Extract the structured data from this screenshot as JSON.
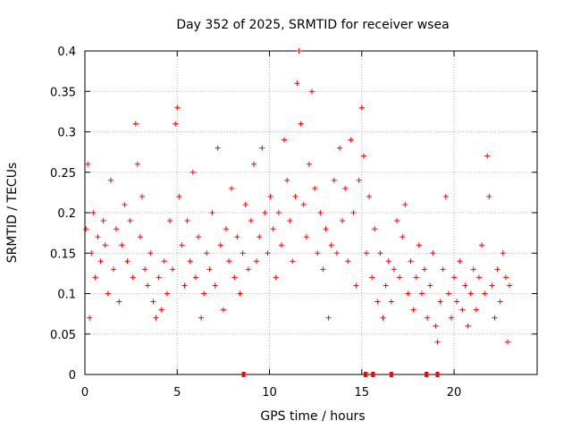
{
  "chart_data": {
    "type": "scatter",
    "title": "Day 352 of 2025, SRMTID for receiver wsea",
    "xlabel": "GPS time / hours",
    "ylabel": "SRMTID / TECUs",
    "xlim": [
      0,
      24.5
    ],
    "ylim": [
      0,
      0.4
    ],
    "x_ticks": [
      0,
      5,
      10,
      15,
      20
    ],
    "x_tick_labels": [
      "0",
      "5",
      "10",
      "15",
      "20"
    ],
    "y_ticks": [
      0,
      0.05,
      0.1,
      0.15,
      0.2,
      0.25,
      0.3,
      0.35,
      0.4
    ],
    "y_tick_labels": [
      "0",
      "0.05",
      "0.1",
      "0.15",
      "0.2",
      "0.25",
      "0.3",
      "0.35",
      "0.4"
    ],
    "grid": true,
    "marker": "+",
    "series_color": "#ff0000",
    "series": [
      {
        "name": "SRMTID",
        "points": [
          [
            0.05,
            0.18
          ],
          [
            0.15,
            0.26
          ],
          [
            0.25,
            0.07
          ],
          [
            0.35,
            0.15
          ],
          [
            0.45,
            0.2
          ],
          [
            0.55,
            0.12
          ],
          [
            0.7,
            0.17
          ],
          [
            0.85,
            0.14
          ],
          [
            1.0,
            0.19
          ],
          [
            1.1,
            0.16
          ],
          [
            1.25,
            0.1
          ],
          [
            1.4,
            0.24
          ],
          [
            1.55,
            0.13
          ],
          [
            1.7,
            0.18
          ],
          [
            1.85,
            0.09
          ],
          [
            2.0,
            0.16
          ],
          [
            2.15,
            0.21
          ],
          [
            2.3,
            0.14
          ],
          [
            2.45,
            0.19
          ],
          [
            2.6,
            0.12
          ],
          [
            2.75,
            0.31
          ],
          [
            2.85,
            0.26
          ],
          [
            3.0,
            0.17
          ],
          [
            3.1,
            0.22
          ],
          [
            3.25,
            0.13
          ],
          [
            3.4,
            0.11
          ],
          [
            3.55,
            0.15
          ],
          [
            3.7,
            0.09
          ],
          [
            3.85,
            0.07
          ],
          [
            4.0,
            0.12
          ],
          [
            4.15,
            0.08
          ],
          [
            4.3,
            0.14
          ],
          [
            4.45,
            0.1
          ],
          [
            4.6,
            0.19
          ],
          [
            4.75,
            0.13
          ],
          [
            4.9,
            0.31
          ],
          [
            5.0,
            0.33
          ],
          [
            5.1,
            0.22
          ],
          [
            5.25,
            0.16
          ],
          [
            5.4,
            0.11
          ],
          [
            5.55,
            0.19
          ],
          [
            5.7,
            0.14
          ],
          [
            5.85,
            0.25
          ],
          [
            6.0,
            0.12
          ],
          [
            6.15,
            0.17
          ],
          [
            6.3,
            0.07
          ],
          [
            6.45,
            0.1
          ],
          [
            6.6,
            0.15
          ],
          [
            6.75,
            0.13
          ],
          [
            6.9,
            0.2
          ],
          [
            7.05,
            0.11
          ],
          [
            7.2,
            0.28
          ],
          [
            7.35,
            0.16
          ],
          [
            7.5,
            0.08
          ],
          [
            7.65,
            0.18
          ],
          [
            7.8,
            0.14
          ],
          [
            7.95,
            0.23
          ],
          [
            8.1,
            0.12
          ],
          [
            8.25,
            0.17
          ],
          [
            8.4,
            0.1
          ],
          [
            8.55,
            0.15
          ],
          [
            8.7,
            0.21
          ],
          [
            8.85,
            0.13
          ],
          [
            9.0,
            0.19
          ],
          [
            9.15,
            0.26
          ],
          [
            9.3,
            0.14
          ],
          [
            9.45,
            0.17
          ],
          [
            9.6,
            0.28
          ],
          [
            9.75,
            0.2
          ],
          [
            9.9,
            0.15
          ],
          [
            10.05,
            0.22
          ],
          [
            10.2,
            0.18
          ],
          [
            10.35,
            0.12
          ],
          [
            10.5,
            0.2
          ],
          [
            10.65,
            0.16
          ],
          [
            10.8,
            0.29
          ],
          [
            10.95,
            0.24
          ],
          [
            11.1,
            0.19
          ],
          [
            11.25,
            0.14
          ],
          [
            11.4,
            0.22
          ],
          [
            11.5,
            0.36
          ],
          [
            11.6,
            0.4
          ],
          [
            11.7,
            0.31
          ],
          [
            11.85,
            0.21
          ],
          [
            12.0,
            0.17
          ],
          [
            12.15,
            0.26
          ],
          [
            12.3,
            0.35
          ],
          [
            12.45,
            0.23
          ],
          [
            12.6,
            0.15
          ],
          [
            12.75,
            0.2
          ],
          [
            12.9,
            0.13
          ],
          [
            13.05,
            0.18
          ],
          [
            13.2,
            0.07
          ],
          [
            13.35,
            0.16
          ],
          [
            13.5,
            0.24
          ],
          [
            13.65,
            0.15
          ],
          [
            13.8,
            0.28
          ],
          [
            13.95,
            0.19
          ],
          [
            14.1,
            0.23
          ],
          [
            14.25,
            0.14
          ],
          [
            14.4,
            0.29
          ],
          [
            14.55,
            0.2
          ],
          [
            14.7,
            0.11
          ],
          [
            14.85,
            0.24
          ],
          [
            15.0,
            0.33
          ],
          [
            15.1,
            0.27
          ],
          [
            15.25,
            0.15
          ],
          [
            15.4,
            0.22
          ],
          [
            15.55,
            0.12
          ],
          [
            15.7,
            0.18
          ],
          [
            15.85,
            0.09
          ],
          [
            16.0,
            0.15
          ],
          [
            16.15,
            0.07
          ],
          [
            16.3,
            0.11
          ],
          [
            16.45,
            0.14
          ],
          [
            16.6,
            0.09
          ],
          [
            16.75,
            0.13
          ],
          [
            16.9,
            0.19
          ],
          [
            17.05,
            0.12
          ],
          [
            17.2,
            0.17
          ],
          [
            17.35,
            0.21
          ],
          [
            17.5,
            0.1
          ],
          [
            17.65,
            0.14
          ],
          [
            17.8,
            0.08
          ],
          [
            17.95,
            0.12
          ],
          [
            18.1,
            0.16
          ],
          [
            18.25,
            0.1
          ],
          [
            18.4,
            0.13
          ],
          [
            18.55,
            0.07
          ],
          [
            18.7,
            0.11
          ],
          [
            18.85,
            0.15
          ],
          [
            19.0,
            0.06
          ],
          [
            19.1,
            0.04
          ],
          [
            19.25,
            0.09
          ],
          [
            19.4,
            0.13
          ],
          [
            19.55,
            0.22
          ],
          [
            19.7,
            0.1
          ],
          [
            19.85,
            0.07
          ],
          [
            20.0,
            0.12
          ],
          [
            20.15,
            0.09
          ],
          [
            20.3,
            0.14
          ],
          [
            20.45,
            0.08
          ],
          [
            20.6,
            0.11
          ],
          [
            20.75,
            0.06
          ],
          [
            20.9,
            0.1
          ],
          [
            21.05,
            0.13
          ],
          [
            21.2,
            0.08
          ],
          [
            21.35,
            0.12
          ],
          [
            21.5,
            0.16
          ],
          [
            21.65,
            0.1
          ],
          [
            21.8,
            0.27
          ],
          [
            21.9,
            0.22
          ],
          [
            22.05,
            0.11
          ],
          [
            22.2,
            0.07
          ],
          [
            22.35,
            0.13
          ],
          [
            22.5,
            0.09
          ],
          [
            22.65,
            0.15
          ],
          [
            22.8,
            0.12
          ],
          [
            22.9,
            0.04
          ],
          [
            23.0,
            0.11
          ]
        ]
      }
    ],
    "gap_markers_x": [
      8.6,
      15.2,
      15.6,
      16.6,
      18.5,
      19.1
    ]
  }
}
